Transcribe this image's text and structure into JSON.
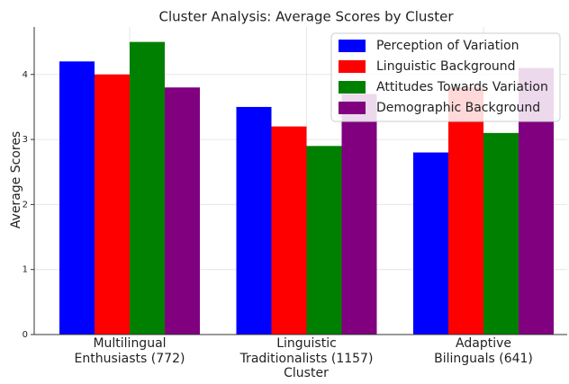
{
  "chart_data": {
    "type": "bar",
    "title": "Cluster Analysis: Average Scores by Cluster",
    "xlabel": "Cluster",
    "ylabel": "Average Scores",
    "categories": [
      [
        "Multilingual",
        "Enthusiasts (772)"
      ],
      [
        "Linguistic",
        "Traditionalists (1157)"
      ],
      [
        "Adaptive",
        "Bilinguals (641)"
      ]
    ],
    "series": [
      {
        "name": "Perception of Variation",
        "color": "#0000ff",
        "values": [
          4.2,
          3.5,
          2.8
        ]
      },
      {
        "name": "Linguistic Background",
        "color": "#ff0000",
        "values": [
          4.0,
          3.2,
          3.8
        ]
      },
      {
        "name": "Attitudes Towards Variation",
        "color": "#008000",
        "values": [
          4.5,
          2.9,
          3.1
        ]
      },
      {
        "name": "Demographic Background",
        "color": "#800080",
        "values": [
          3.8,
          3.7,
          4.1
        ]
      }
    ],
    "ylim": [
      0,
      4.73
    ],
    "yticks": [
      0,
      1,
      2,
      3,
      4
    ],
    "grid": true,
    "legend": "upper right"
  }
}
